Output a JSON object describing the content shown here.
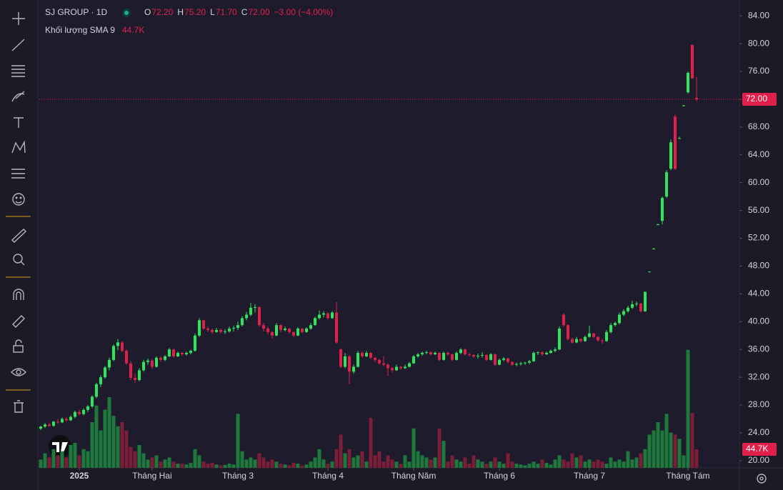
{
  "chart_data": {
    "type": "candlestick",
    "symbol": "SJ GROUP · 1D",
    "ohlc_prefixes": [
      "O",
      "H",
      "L",
      "C"
    ],
    "ohlc_labels": [
      "72.20",
      "75.20",
      "71.70",
      "72.00"
    ],
    "change_label": "−3.00 (−4.00%)",
    "volume_title": "Khối lượng SMA 9",
    "volume_label": "44.7K",
    "last_price_label": "72.00",
    "up_color": "#2ee65c",
    "down_color": "#e0204a",
    "volume_up_color": "#1e7a3c",
    "volume_down_color": "#7d1e38",
    "candles": [
      [
        24.6,
        25.0,
        24.4,
        24.9,
        20
      ],
      [
        24.9,
        25.4,
        24.7,
        25.2,
        35
      ],
      [
        25.2,
        25.5,
        24.9,
        25.0,
        25
      ],
      [
        25.0,
        25.7,
        24.9,
        25.6,
        45
      ],
      [
        25.6,
        26.0,
        25.3,
        25.5,
        30
      ],
      [
        25.5,
        26.2,
        25.4,
        26.0,
        40
      ],
      [
        26.0,
        26.3,
        25.6,
        25.8,
        25
      ],
      [
        25.8,
        26.5,
        25.7,
        26.3,
        55
      ],
      [
        26.3,
        27.2,
        26.1,
        27.0,
        60
      ],
      [
        27.0,
        27.3,
        26.5,
        26.7,
        30
      ],
      [
        26.7,
        27.5,
        26.5,
        27.3,
        45
      ],
      [
        27.3,
        28.0,
        27.0,
        27.8,
        40
      ],
      [
        27.8,
        29.4,
        27.6,
        29.2,
        110
      ],
      [
        29.2,
        31.2,
        29.0,
        31.0,
        150
      ],
      [
        31.0,
        32.3,
        30.6,
        32.0,
        90
      ],
      [
        32.0,
        33.6,
        31.8,
        33.4,
        140
      ],
      [
        33.4,
        34.8,
        33.0,
        34.5,
        170
      ],
      [
        34.5,
        36.7,
        34.3,
        36.5,
        125
      ],
      [
        36.5,
        37.5,
        35.9,
        37.0,
        100
      ],
      [
        37.0,
        37.2,
        35.6,
        35.8,
        110
      ],
      [
        35.8,
        36.0,
        33.8,
        34.0,
        90
      ],
      [
        34.0,
        34.3,
        31.6,
        31.9,
        50
      ],
      [
        31.9,
        32.5,
        31.2,
        31.6,
        40
      ],
      [
        31.6,
        33.3,
        31.4,
        33.0,
        55
      ],
      [
        33.0,
        34.5,
        32.8,
        34.2,
        35
      ],
      [
        34.2,
        34.7,
        33.8,
        34.4,
        20
      ],
      [
        34.4,
        34.6,
        33.2,
        33.5,
        25
      ],
      [
        33.5,
        35.0,
        33.4,
        34.8,
        30
      ],
      [
        34.8,
        35.0,
        34.2,
        34.5,
        15
      ],
      [
        34.5,
        35.2,
        34.3,
        35.0,
        20
      ],
      [
        35.0,
        36.2,
        34.9,
        36.0,
        25
      ],
      [
        36.0,
        36.1,
        34.8,
        35.0,
        15
      ],
      [
        35.0,
        35.7,
        34.9,
        35.5,
        10
      ],
      [
        35.5,
        35.6,
        35.1,
        35.3,
        10
      ],
      [
        35.3,
        35.7,
        35.1,
        35.5,
        8
      ],
      [
        35.5,
        36.0,
        35.3,
        35.8,
        12
      ],
      [
        35.8,
        38.3,
        35.7,
        38.0,
        45
      ],
      [
        38.0,
        40.5,
        37.8,
        40.2,
        30
      ],
      [
        40.2,
        40.3,
        38.8,
        39.0,
        15
      ],
      [
        39.0,
        39.3,
        38.5,
        38.8,
        10
      ],
      [
        38.8,
        39.0,
        38.2,
        38.5,
        12
      ],
      [
        38.5,
        39.1,
        38.4,
        38.8,
        8
      ],
      [
        38.8,
        39.0,
        38.3,
        38.5,
        6
      ],
      [
        38.5,
        38.9,
        38.2,
        38.6,
        7
      ],
      [
        38.6,
        39.3,
        38.4,
        39.0,
        10
      ],
      [
        39.0,
        39.4,
        38.6,
        39.1,
        8
      ],
      [
        39.1,
        40.0,
        38.8,
        39.5,
        130
      ],
      [
        39.5,
        40.8,
        39.3,
        40.5,
        40
      ],
      [
        40.5,
        41.4,
        40.2,
        41.0,
        20
      ],
      [
        41.0,
        42.7,
        40.8,
        42.0,
        25
      ],
      [
        42.0,
        42.5,
        41.3,
        42.1,
        20
      ],
      [
        42.1,
        42.2,
        39.3,
        39.5,
        35
      ],
      [
        39.5,
        39.8,
        38.6,
        39.0,
        25
      ],
      [
        39.0,
        39.3,
        38.2,
        38.5,
        15
      ],
      [
        38.5,
        38.6,
        37.6,
        38.0,
        20
      ],
      [
        38.0,
        39.8,
        37.9,
        39.5,
        15
      ],
      [
        39.5,
        39.6,
        38.5,
        38.8,
        10
      ],
      [
        38.8,
        39.3,
        38.6,
        39.0,
        8
      ],
      [
        39.0,
        39.1,
        38.3,
        38.5,
        6
      ],
      [
        38.5,
        38.6,
        37.7,
        38.0,
        12
      ],
      [
        38.0,
        39.2,
        37.9,
        39.0,
        10
      ],
      [
        39.0,
        39.1,
        38.3,
        38.5,
        5
      ],
      [
        38.5,
        39.2,
        38.4,
        39.0,
        8
      ],
      [
        39.0,
        39.8,
        38.8,
        39.5,
        15
      ],
      [
        39.5,
        40.7,
        39.4,
        40.5,
        25
      ],
      [
        40.5,
        41.6,
        40.3,
        41.0,
        45
      ],
      [
        41.0,
        41.5,
        40.6,
        41.2,
        20
      ],
      [
        41.2,
        41.3,
        40.3,
        40.5,
        10
      ],
      [
        40.5,
        41.5,
        40.4,
        41.3,
        15
      ],
      [
        41.3,
        42.8,
        36.8,
        37.0,
        45
      ],
      [
        36.0,
        36.1,
        33.3,
        33.5,
        80
      ],
      [
        33.5,
        35.5,
        33.3,
        35.0,
        35
      ],
      [
        35.0,
        35.2,
        31.0,
        32.8,
        45
      ],
      [
        32.8,
        33.8,
        32.5,
        33.5,
        25
      ],
      [
        33.5,
        35.8,
        33.4,
        35.5,
        30
      ],
      [
        35.5,
        35.7,
        34.8,
        35.0,
        40
      ],
      [
        35.0,
        35.8,
        34.9,
        35.5,
        15
      ],
      [
        35.5,
        35.6,
        34.6,
        34.8,
        120
      ],
      [
        34.8,
        34.9,
        34.2,
        34.5,
        30
      ],
      [
        34.5,
        34.6,
        33.8,
        34.0,
        40
      ],
      [
        34.0,
        35.0,
        33.6,
        33.8,
        15
      ],
      [
        33.8,
        34.0,
        32.2,
        33.3,
        30
      ],
      [
        33.3,
        33.5,
        32.7,
        33.0,
        20
      ],
      [
        33.0,
        33.8,
        32.9,
        33.5,
        15
      ],
      [
        33.5,
        33.6,
        33.1,
        33.3,
        10
      ],
      [
        33.3,
        33.8,
        33.2,
        33.5,
        30
      ],
      [
        33.5,
        34.2,
        33.4,
        34.0,
        15
      ],
      [
        34.0,
        35.2,
        33.9,
        35.0,
        95
      ],
      [
        35.0,
        35.5,
        34.8,
        35.3,
        40
      ],
      [
        35.3,
        35.7,
        35.1,
        35.5,
        30
      ],
      [
        35.5,
        35.8,
        35.3,
        35.6,
        25
      ],
      [
        35.6,
        35.7,
        35.1,
        35.3,
        20
      ],
      [
        35.3,
        35.7,
        35.2,
        35.5,
        25
      ],
      [
        35.5,
        35.6,
        34.3,
        34.5,
        95
      ],
      [
        34.5,
        35.7,
        34.4,
        35.5,
        65
      ],
      [
        35.5,
        35.7,
        35.1,
        35.3,
        15
      ],
      [
        35.3,
        35.4,
        34.3,
        34.5,
        30
      ],
      [
        34.5,
        35.7,
        34.4,
        35.5,
        20
      ],
      [
        35.5,
        36.2,
        35.3,
        36.0,
        15
      ],
      [
        36.0,
        36.1,
        35.1,
        35.3,
        25
      ],
      [
        35.3,
        35.5,
        35.0,
        35.2,
        10
      ],
      [
        35.2,
        35.3,
        34.8,
        35.0,
        30
      ],
      [
        35.0,
        35.4,
        34.7,
        35.1,
        20
      ],
      [
        35.1,
        35.6,
        34.8,
        35.2,
        15
      ],
      [
        35.2,
        35.3,
        34.3,
        34.5,
        10
      ],
      [
        34.5,
        35.5,
        34.4,
        35.3,
        15
      ],
      [
        35.3,
        35.4,
        33.6,
        33.8,
        25
      ],
      [
        33.8,
        34.7,
        33.7,
        34.5,
        15
      ],
      [
        34.5,
        34.9,
        34.3,
        34.7,
        10
      ],
      [
        34.7,
        34.8,
        34.0,
        34.2,
        35
      ],
      [
        34.2,
        34.3,
        33.6,
        33.8,
        15
      ],
      [
        33.8,
        34.1,
        33.6,
        33.9,
        10
      ],
      [
        33.9,
        34.2,
        33.7,
        34.0,
        8
      ],
      [
        34.0,
        34.2,
        33.8,
        34.1,
        6
      ],
      [
        34.1,
        34.5,
        33.9,
        34.3,
        10
      ],
      [
        34.3,
        35.7,
        34.2,
        35.5,
        15
      ],
      [
        35.5,
        35.7,
        35.2,
        35.6,
        10
      ],
      [
        35.6,
        35.7,
        35.1,
        35.3,
        20
      ],
      [
        35.3,
        35.7,
        35.2,
        35.5,
        12
      ],
      [
        35.5,
        36.0,
        35.4,
        35.8,
        8
      ],
      [
        35.8,
        36.3,
        35.6,
        36.0,
        20
      ],
      [
        36.0,
        39.3,
        35.9,
        39.0,
        30
      ],
      [
        41.0,
        41.2,
        39.3,
        39.5,
        20
      ],
      [
        39.5,
        39.6,
        37.3,
        37.5,
        15
      ],
      [
        37.5,
        37.7,
        36.8,
        37.0,
        35
      ],
      [
        37.0,
        37.8,
        36.9,
        37.5,
        25
      ],
      [
        37.5,
        37.6,
        37.0,
        37.2,
        30
      ],
      [
        37.2,
        38.0,
        37.1,
        37.8,
        15
      ],
      [
        37.8,
        39.4,
        37.7,
        38.3,
        20
      ],
      [
        38.3,
        38.4,
        37.6,
        37.8,
        15
      ],
      [
        37.8,
        37.9,
        37.1,
        37.3,
        20
      ],
      [
        37.3,
        37.5,
        36.8,
        37.2,
        15
      ],
      [
        37.2,
        38.8,
        37.1,
        38.5,
        10
      ],
      [
        38.5,
        39.8,
        38.3,
        39.5,
        25
      ],
      [
        39.5,
        40.0,
        39.3,
        39.8,
        15
      ],
      [
        39.8,
        41.3,
        39.6,
        41.0,
        20
      ],
      [
        41.0,
        41.8,
        40.8,
        41.5,
        15
      ],
      [
        41.5,
        42.3,
        41.3,
        42.0,
        40
      ],
      [
        42.0,
        43.0,
        41.8,
        42.5,
        20
      ],
      [
        42.5,
        42.9,
        42.2,
        42.6,
        25
      ],
      [
        42.6,
        42.7,
        41.3,
        41.5,
        35
      ],
      [
        41.5,
        44.3,
        41.4,
        44.3,
        45
      ],
      [
        47.1,
        47.2,
        47.1,
        47.2,
        80
      ],
      [
        50.4,
        50.6,
        50.4,
        50.5,
        90
      ],
      [
        53.9,
        54.1,
        53.9,
        54.0,
        110
      ],
      [
        54.5,
        58.0,
        54.0,
        57.8,
        90
      ],
      [
        58.0,
        61.8,
        57.8,
        61.5,
        130
      ],
      [
        62.0,
        66.2,
        61.8,
        65.8,
        85
      ],
      [
        69.5,
        69.8,
        61.8,
        62.0,
        80
      ],
      [
        66.3,
        66.6,
        66.3,
        66.4,
        70
      ],
      [
        71.0,
        71.2,
        71.0,
        71.1,
        30
      ],
      [
        73.0,
        76.0,
        72.8,
        75.8,
        284
      ],
      [
        79.8,
        79.9,
        75.0,
        75.0,
        132
      ],
      [
        72.2,
        75.2,
        71.7,
        72.0,
        44.7
      ]
    ],
    "xlim": [
      -0.33,
      163
    ],
    "xticks": [
      {
        "value": 9,
        "label": "2025"
      },
      {
        "value": 26,
        "label": "Tháng Hai"
      },
      {
        "value": 46,
        "label": "Tháng 3"
      },
      {
        "value": 67,
        "label": "Tháng 4"
      },
      {
        "value": 87,
        "label": "Tháng Năm"
      },
      {
        "value": 107,
        "label": "Tháng 6"
      },
      {
        "value": 128,
        "label": "Tháng 7"
      },
      {
        "value": 151,
        "label": "Tháng Tám"
      }
    ],
    "ylim": [
      18.96,
      86.28
    ],
    "yticks": [
      {
        "value": 20,
        "label": "20.00"
      },
      {
        "value": 24,
        "label": "24.00"
      },
      {
        "value": 28,
        "label": "28.00"
      },
      {
        "value": 32,
        "label": "32.00"
      },
      {
        "value": 36,
        "label": "36.00"
      },
      {
        "value": 40,
        "label": "40.00"
      },
      {
        "value": 44,
        "label": "44.00"
      },
      {
        "value": 48,
        "label": "48.00"
      },
      {
        "value": 52,
        "label": "52.00"
      },
      {
        "value": 56,
        "label": "56.00"
      },
      {
        "value": 60,
        "label": "60.00"
      },
      {
        "value": 64,
        "label": "64.00"
      },
      {
        "value": 68,
        "label": "68.00"
      },
      {
        "value": 72,
        "label": "72.00"
      },
      {
        "value": 76,
        "label": "76.00"
      },
      {
        "value": 80,
        "label": "80.00"
      },
      {
        "value": 84,
        "label": "84.00"
      }
    ],
    "vlim": [
      0,
      318
    ]
  }
}
